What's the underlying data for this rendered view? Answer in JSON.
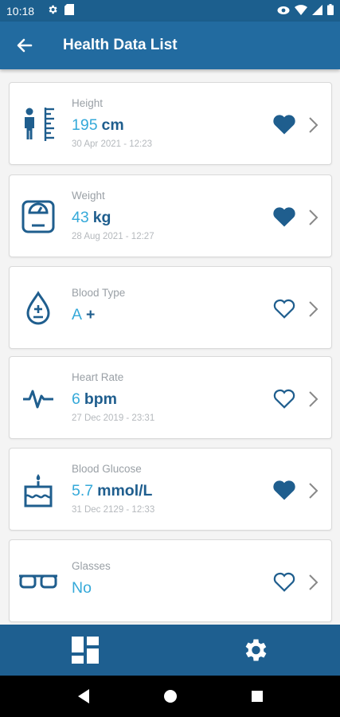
{
  "status_bar": {
    "time": "10:18",
    "icons": [
      "gear-icon",
      "sd-card-icon",
      "eye-icon",
      "wifi-icon",
      "signal-icon",
      "battery-icon"
    ]
  },
  "app_bar": {
    "title": "Health Data List",
    "back_icon": "arrow-left-icon"
  },
  "items": [
    {
      "label": "Height",
      "value": "195",
      "unit": "cm",
      "date": "30 Apr 2021 - 12:23",
      "favorite": true,
      "icon": "height-icon"
    },
    {
      "label": "Weight",
      "value": "43",
      "unit": "kg",
      "date": "28 Aug 2021 - 12:27",
      "favorite": true,
      "icon": "scale-icon"
    },
    {
      "label": "Blood Type",
      "value": "A",
      "unit": "+",
      "date": "",
      "favorite": false,
      "icon": "blood-drop-icon"
    },
    {
      "label": "Heart Rate",
      "value": "6",
      "unit": "bpm",
      "date": "27 Dec 2019 - 23:31",
      "favorite": false,
      "icon": "heartbeat-icon"
    },
    {
      "label": "Blood Glucose",
      "value": "5.7",
      "unit": "mmol/L",
      "date": "31 Dec 2129 - 12:33",
      "favorite": true,
      "icon": "cake-icon"
    },
    {
      "label": "Glasses",
      "value": "No",
      "unit": "",
      "date": "",
      "favorite": false,
      "icon": "glasses-icon"
    }
  ],
  "bottom_nav": {
    "items": [
      {
        "icon": "dashboard-icon"
      },
      {
        "icon": "settings-icon"
      }
    ]
  },
  "system_nav": {
    "items": [
      "back-triangle-icon",
      "home-circle-icon",
      "recents-square-icon"
    ]
  },
  "colors": {
    "primary": "#226ba0",
    "status_bar": "#1c5f8e",
    "value_accent": "#35a9d9",
    "unit_dark": "#1f5e8e",
    "icon": "#1f5e8e"
  }
}
